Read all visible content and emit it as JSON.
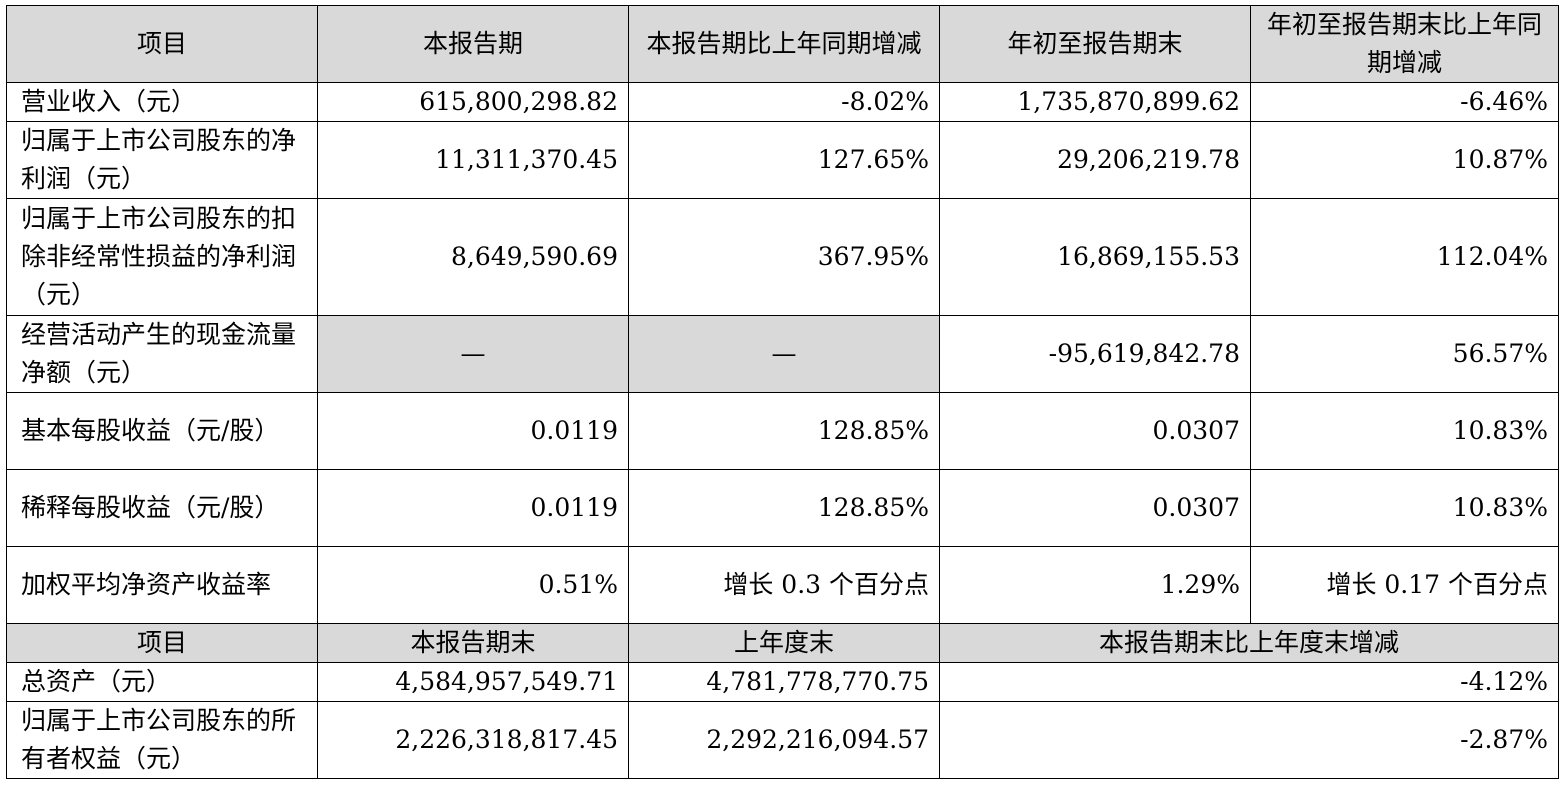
{
  "header": {
    "item": "项目",
    "current_period": "本报告期",
    "current_change": "本报告期比上年同期增减",
    "ytd": "年初至报告期末",
    "ytd_change": "年初至报告期末比上年同期增减"
  },
  "rows": [
    {
      "label": "营业收入（元）",
      "current": "615,800,298.82",
      "current_change": "-8.02%",
      "ytd": "1,735,870,899.62",
      "ytd_change": "-6.46%"
    },
    {
      "label": "归属于上市公司股东的净利润（元）",
      "current": "11,311,370.45",
      "current_change": "127.65%",
      "ytd": "29,206,219.78",
      "ytd_change": "10.87%"
    },
    {
      "label": "归属于上市公司股东的扣除非经常性损益的净利润（元）",
      "current": "8,649,590.69",
      "current_change": "367.95%",
      "ytd": "16,869,155.53",
      "ytd_change": "112.04%"
    },
    {
      "label": "经营活动产生的现金流量净额（元）",
      "current": "—",
      "current_change": "—",
      "ytd": "-95,619,842.78",
      "ytd_change": "56.57%"
    },
    {
      "label": "基本每股收益（元/股）",
      "current": "0.0119",
      "current_change": "128.85%",
      "ytd": "0.0307",
      "ytd_change": "10.83%"
    },
    {
      "label": "稀释每股收益（元/股）",
      "current": "0.0119",
      "current_change": "128.85%",
      "ytd": "0.0307",
      "ytd_change": "10.83%"
    },
    {
      "label": "加权平均净资产收益率",
      "current": "0.51%",
      "current_change": "增长 0.3 个百分点",
      "ytd": "1.29%",
      "ytd_change": "增长 0.17 个百分点"
    }
  ],
  "sub_header": {
    "item": "项目",
    "period_end": "本报告期末",
    "prior_year_end": "上年度末",
    "change": "本报告期末比上年度末增减"
  },
  "balance_rows": [
    {
      "label": "总资产（元）",
      "period_end": "4,584,957,549.71",
      "prior_year_end": "4,781,778,770.75",
      "change": "-4.12%"
    },
    {
      "label": "归属于上市公司股东的所有者权益（元）",
      "period_end": "2,226,318,817.45",
      "prior_year_end": "2,292,216,094.57",
      "change": "-2.87%"
    }
  ],
  "colors": {
    "header_bg": "#d9d9d9",
    "border": "#000000"
  }
}
